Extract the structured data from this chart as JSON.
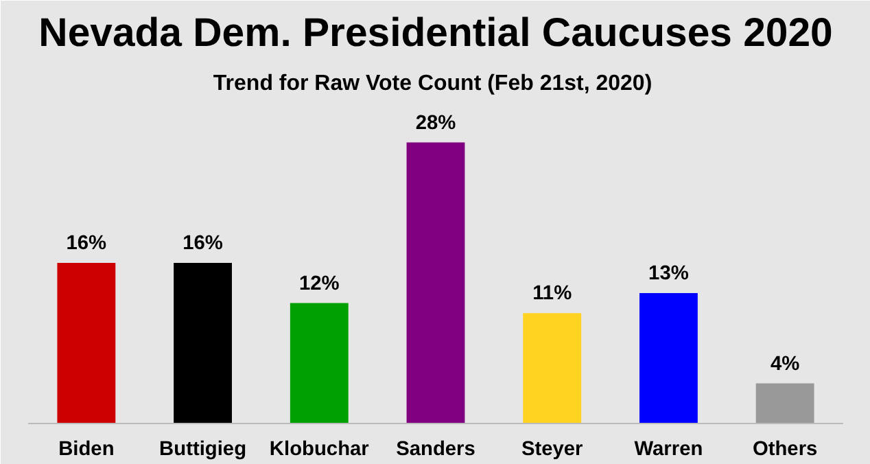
{
  "chart_data": {
    "type": "bar",
    "title": "Nevada Dem. Presidential Caucuses 2020",
    "subtitle": "Trend for Raw Vote Count  (Feb 21st, 2020)",
    "categories": [
      "Biden",
      "Buttigieg",
      "Klobuchar",
      "Sanders",
      "Steyer",
      "Warren",
      "Others"
    ],
    "values": [
      16,
      16,
      12,
      28,
      11,
      13,
      4
    ],
    "value_labels": [
      "16%",
      "16%",
      "12%",
      "28%",
      "11%",
      "13%",
      "4%"
    ],
    "colors": [
      "#cc0000",
      "#000000",
      "#00a000",
      "#800080",
      "#ffd320",
      "#0000ff",
      "#999999"
    ],
    "ylim": [
      0,
      32
    ]
  }
}
